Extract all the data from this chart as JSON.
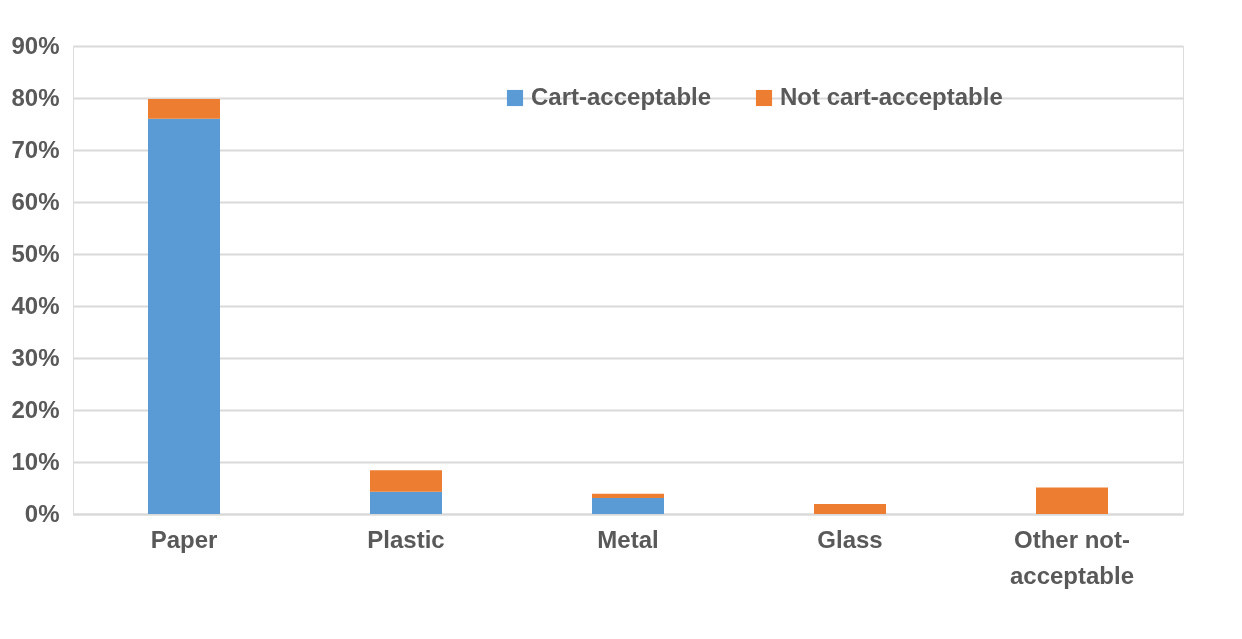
{
  "chart_data": {
    "type": "bar",
    "stacked": true,
    "categories": [
      "Paper",
      "Plastic",
      "Metal",
      "Glass",
      "Other not-acceptable"
    ],
    "series": [
      {
        "name": "Cart-acceptable",
        "color": "#5b9bd5",
        "values": [
          76,
          4.3,
          3.1,
          0,
          0
        ]
      },
      {
        "name": "Not cart-acceptable",
        "color": "#ed7d31",
        "values": [
          3.8,
          4.1,
          0.8,
          1.9,
          5.1
        ]
      }
    ],
    "ylim": [
      0,
      90
    ],
    "yticks": [
      {
        "value": 0,
        "label": "0%"
      },
      {
        "value": 10,
        "label": "10%"
      },
      {
        "value": 20,
        "label": "20%"
      },
      {
        "value": 30,
        "label": "30%"
      },
      {
        "value": 40,
        "label": "40%"
      },
      {
        "value": 50,
        "label": "50%"
      },
      {
        "value": 60,
        "label": "60%"
      },
      {
        "value": 70,
        "label": "70%"
      },
      {
        "value": 80,
        "label": "80%"
      },
      {
        "value": 90,
        "label": "90%"
      }
    ],
    "grid": "y",
    "legend": "top"
  }
}
